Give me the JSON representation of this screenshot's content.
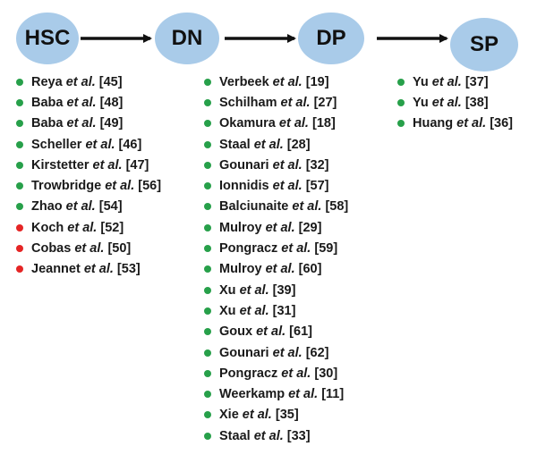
{
  "nodes": [
    "HSC",
    "DN",
    "DP",
    "SP"
  ],
  "colors": {
    "node_fill": "#a9cbe9",
    "green": "#27a04a",
    "red": "#e52525",
    "arrow": "#111111"
  },
  "columns": [
    {
      "items": [
        {
          "author": "Reya",
          "ref": "[45]",
          "color": "green"
        },
        {
          "author": "Baba",
          "ref": "[48]",
          "color": "green"
        },
        {
          "author": "Baba",
          "ref": "[49]",
          "color": "green"
        },
        {
          "author": "Scheller",
          "ref": "[46]",
          "color": "green"
        },
        {
          "author": "Kirstetter",
          "ref": "[47]",
          "color": "green"
        },
        {
          "author": "Trowbridge",
          "ref": "[56]",
          "color": "green"
        },
        {
          "author": "Zhao",
          "ref": "[54]",
          "color": "green"
        },
        {
          "author": "Koch",
          "ref": "[52]",
          "color": "red"
        },
        {
          "author": "Cobas",
          "ref": "[50]",
          "color": "red"
        },
        {
          "author": "Jeannet",
          "ref": "[53]",
          "color": "red"
        }
      ]
    },
    {
      "items": [
        {
          "author": "Verbeek",
          "ref": "[19]",
          "color": "green"
        },
        {
          "author": "Schilham",
          "ref": "[27]",
          "color": "green"
        },
        {
          "author": "Okamura",
          "ref": "[18]",
          "color": "green"
        },
        {
          "author": "Staal",
          "ref": "[28]",
          "color": "green"
        },
        {
          "author": "Gounari",
          "ref": "[32]",
          "color": "green"
        },
        {
          "author": "Ionnidis",
          "ref": "[57]",
          "color": "green"
        },
        {
          "author": "Balciunaite",
          "ref": "[58]",
          "color": "green"
        },
        {
          "author": "Mulroy",
          "ref": "[29]",
          "color": "green"
        },
        {
          "author": "Pongracz",
          "ref": "[59]",
          "color": "green"
        },
        {
          "author": "Mulroy",
          "ref": "[60]",
          "color": "green"
        },
        {
          "author": "Xu",
          "ref": "[39]",
          "color": "green"
        },
        {
          "author": "Xu",
          "ref": "[31]",
          "color": "green"
        },
        {
          "author": "Goux",
          "ref": "[61]",
          "color": "green"
        },
        {
          "author": "Gounari",
          "ref": "[62]",
          "color": "green"
        },
        {
          "author": "Pongracz",
          "ref": "[30]",
          "color": "green"
        },
        {
          "author": "Weerkamp",
          "ref": "[11]",
          "color": "green"
        },
        {
          "author": "Xie",
          "ref": "[35]",
          "color": "green"
        },
        {
          "author": "Staal",
          "ref": "[33]",
          "color": "green"
        }
      ]
    },
    {
      "items": [
        {
          "author": "Yu",
          "ref": "[37]",
          "color": "green"
        },
        {
          "author": "Yu",
          "ref": "[38]",
          "color": "green"
        },
        {
          "author": "Huang",
          "ref": "[36]",
          "color": "green"
        }
      ]
    }
  ],
  "etal": "et al."
}
